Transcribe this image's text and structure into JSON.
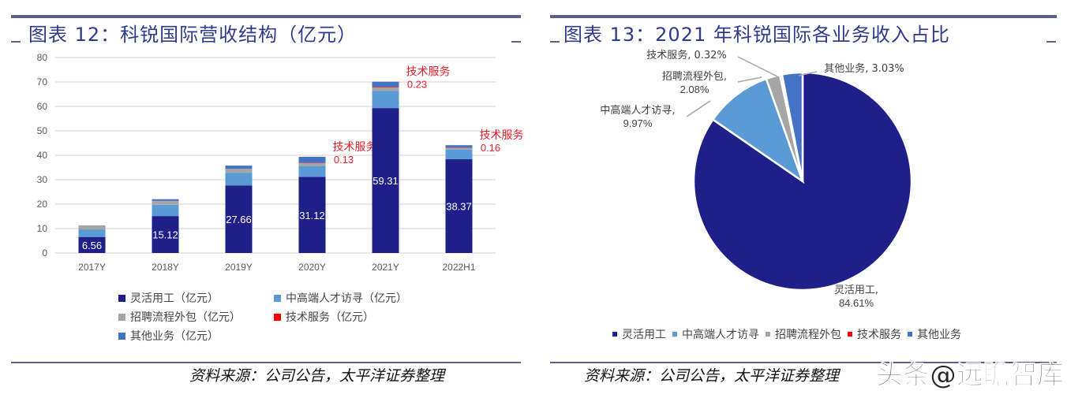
{
  "left": {
    "title": "图表 12：科锐国际营收结构（亿元）",
    "source": "资料来源：公司公告，太平洋证券整理"
  },
  "right": {
    "title": "图表 13：2021 年科锐国际各业务收入占比",
    "source": "资料来源：公司公告，太平洋证券整理"
  },
  "watermark": "头条@远瞻智库",
  "colors": {
    "flex": "#1f1f8a",
    "high": "#5b9bd5",
    "rpo": "#a5a5a5",
    "tech": "#ff0000",
    "other": "#4472c4",
    "title": "#2e3a8c",
    "annotation": "#e8202a"
  },
  "chart_data": [
    {
      "type": "bar",
      "stacked": true,
      "title": "图表 12：科锐国际营收结构（亿元）",
      "ylim": [
        0,
        80
      ],
      "yticks": [
        0,
        10,
        20,
        30,
        40,
        50,
        60,
        70,
        80
      ],
      "grid": true,
      "legend": "bottom",
      "categories": [
        "2017Y",
        "2018Y",
        "2019Y",
        "2020Y",
        "2021Y",
        "2022H1"
      ],
      "series": [
        {
          "name": "灵活用工（亿元）",
          "key": "flex",
          "values": [
            6.56,
            15.12,
            27.66,
            31.12,
            59.31,
            38.37
          ],
          "labels": [
            "6.56",
            "15.12",
            "27.66",
            "31.12",
            "59.31",
            "38.37"
          ]
        },
        {
          "name": "中高端人才访寻（亿元）",
          "key": "high",
          "values": [
            3.1,
            4.6,
            5.2,
            4.5,
            6.99,
            4.0
          ]
        },
        {
          "name": "招聘流程外包（亿元）",
          "key": "rpo",
          "values": [
            1.5,
            1.6,
            1.6,
            1.2,
            1.46,
            0.6
          ]
        },
        {
          "name": "技术服务（亿元）",
          "key": "tech",
          "values": [
            0,
            0,
            0,
            0.13,
            0.23,
            0.16
          ]
        },
        {
          "name": "其他业务（亿元）",
          "key": "other",
          "values": [
            0.1,
            0.7,
            1.3,
            2.4,
            2.12,
            1.0
          ]
        }
      ],
      "annotations": [
        {
          "category": "2020Y",
          "text": "技术服务",
          "value": "0.13"
        },
        {
          "category": "2021Y",
          "text": "技术服务",
          "value": "0.23"
        },
        {
          "category": "2022H1",
          "text": "技术服务",
          "value": "0.16"
        }
      ]
    },
    {
      "type": "pie",
      "title": "图表 13：2021 年科锐国际各业务收入占比",
      "legend": "bottom",
      "slices": [
        {
          "name": "灵活用工",
          "key": "flex",
          "value": 84.61,
          "label": "灵活用工,",
          "pct": "84.61%"
        },
        {
          "name": "中高端人才访寻",
          "key": "high",
          "value": 9.97,
          "label": "中高端人才访寻,",
          "pct": "9.97%"
        },
        {
          "name": "招聘流程外包",
          "key": "rpo",
          "value": 2.08,
          "label": "招聘流程外包,",
          "pct": "2.08%"
        },
        {
          "name": "技术服务",
          "key": "tech",
          "value": 0.32,
          "label": "技术服务, 0.32%",
          "pct": ""
        },
        {
          "name": "其他业务",
          "key": "other",
          "value": 3.03,
          "label": "其他业务, 3.03%",
          "pct": ""
        }
      ]
    }
  ]
}
